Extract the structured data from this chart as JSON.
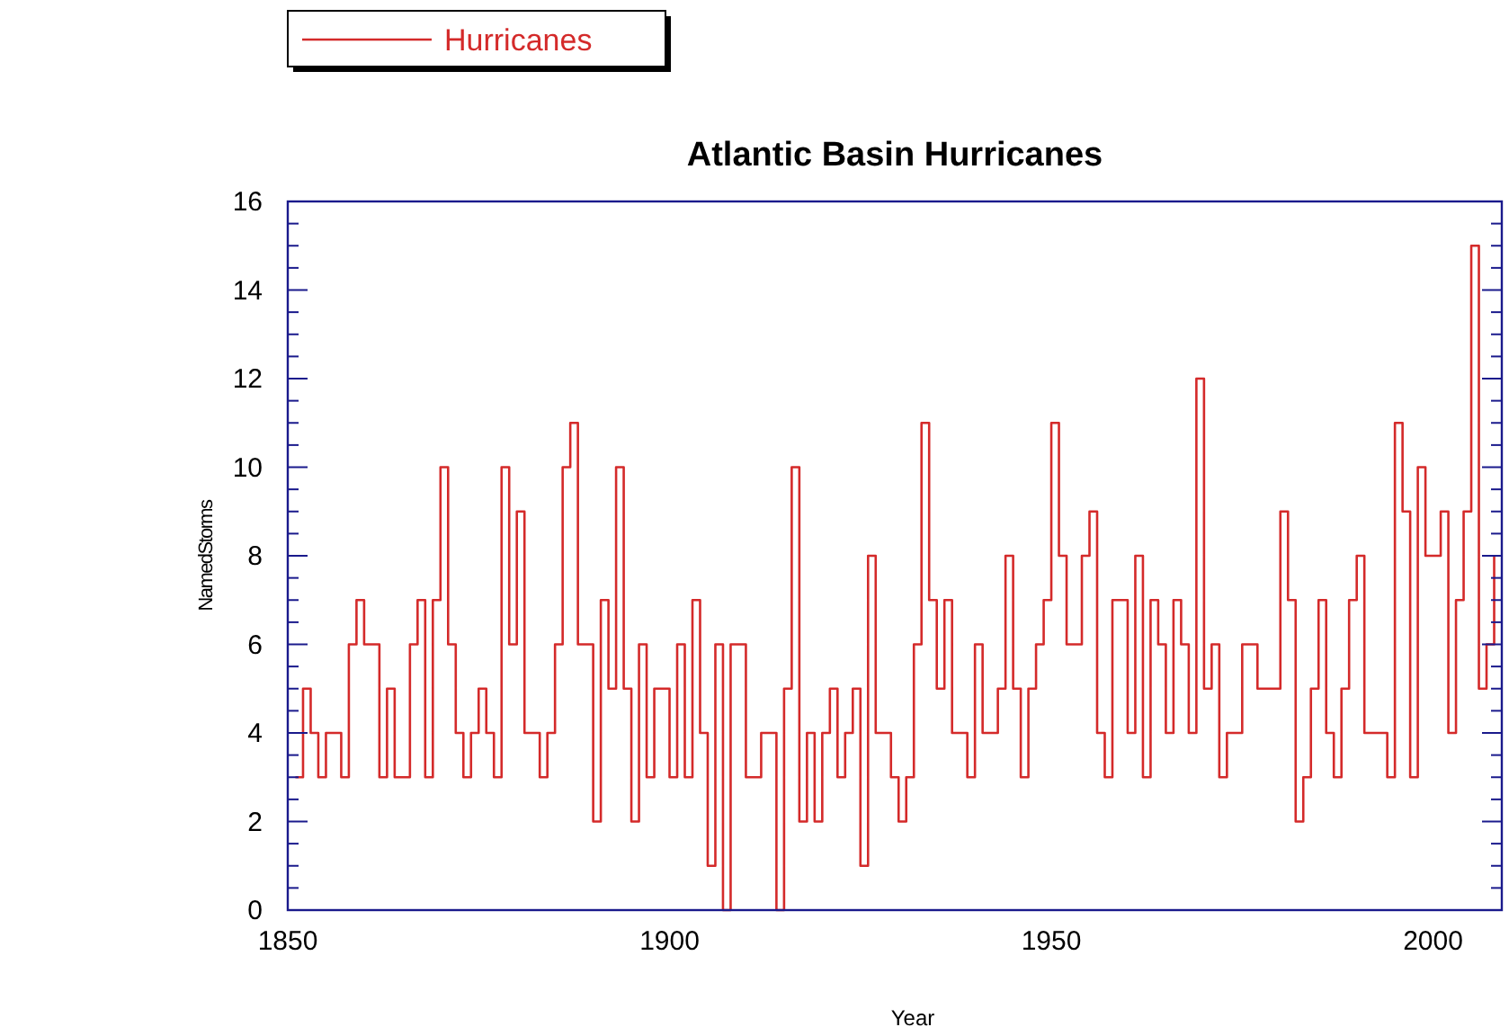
{
  "chart_data": {
    "type": "step",
    "title": "Atlantic Basin Hurricanes",
    "xlabel": "Year",
    "ylabel": "NamedStorms",
    "xlim": [
      1850,
      2009
    ],
    "xticks": [
      1850,
      1900,
      1950,
      2000
    ],
    "ylim": [
      0,
      16
    ],
    "yticks": [
      0,
      {
        "value": 0.5,
        "label": null
      },
      {
        "value": 1,
        "label": null
      },
      {
        "value": 1.5,
        "label": null
      },
      2,
      {
        "value": 2.5,
        "label": null
      },
      {
        "value": 3,
        "label": null
      },
      {
        "value": 3.5,
        "label": null
      },
      4,
      {
        "value": 4.5,
        "label": null
      },
      {
        "value": 5,
        "label": null
      },
      {
        "value": 5.5,
        "label": null
      },
      6,
      {
        "value": 6.5,
        "label": null
      },
      {
        "value": 7,
        "label": null
      },
      {
        "value": 7.5,
        "label": null
      },
      8,
      {
        "value": 8.5,
        "label": null
      },
      {
        "value": 9,
        "label": null
      },
      {
        "value": 9.5,
        "label": null
      },
      10,
      {
        "value": 10.5,
        "label": null
      },
      {
        "value": 11,
        "label": null
      },
      {
        "value": 11.5,
        "label": null
      },
      12,
      {
        "value": 12.5,
        "label": null
      },
      {
        "value": 13,
        "label": null
      },
      {
        "value": 13.5,
        "label": null
      },
      14,
      {
        "value": 14.5,
        "label": null
      },
      {
        "value": 15,
        "label": null
      },
      {
        "value": 15.5,
        "label": null
      },
      16
    ],
    "legend": "top left",
    "grid": false,
    "x": [
      1851,
      1852,
      1853,
      1854,
      1855,
      1856,
      1857,
      1858,
      1859,
      1860,
      1861,
      1862,
      1863,
      1864,
      1865,
      1866,
      1867,
      1868,
      1869,
      1870,
      1871,
      1872,
      1873,
      1874,
      1875,
      1876,
      1877,
      1878,
      1879,
      1880,
      1881,
      1882,
      1883,
      1884,
      1885,
      1886,
      1887,
      1888,
      1889,
      1890,
      1891,
      1892,
      1893,
      1894,
      1895,
      1896,
      1897,
      1898,
      1899,
      1900,
      1901,
      1902,
      1903,
      1904,
      1905,
      1906,
      1907,
      1908,
      1909,
      1910,
      1911,
      1912,
      1913,
      1914,
      1915,
      1916,
      1917,
      1918,
      1919,
      1920,
      1921,
      1922,
      1923,
      1924,
      1925,
      1926,
      1927,
      1928,
      1929,
      1930,
      1931,
      1932,
      1933,
      1934,
      1935,
      1936,
      1937,
      1938,
      1939,
      1940,
      1941,
      1942,
      1943,
      1944,
      1945,
      1946,
      1947,
      1948,
      1949,
      1950,
      1951,
      1952,
      1953,
      1954,
      1955,
      1956,
      1957,
      1958,
      1959,
      1960,
      1961,
      1962,
      1963,
      1964,
      1965,
      1966,
      1967,
      1968,
      1969,
      1970,
      1971,
      1972,
      1973,
      1974,
      1975,
      1976,
      1977,
      1978,
      1979,
      1980,
      1981,
      1982,
      1983,
      1984,
      1985,
      1986,
      1987,
      1988,
      1989,
      1990,
      1991,
      1992,
      1993,
      1994,
      1995,
      1996,
      1997,
      1998,
      1999,
      2000,
      2001,
      2002,
      2003,
      2004,
      2005,
      2006,
      2007,
      2008
    ],
    "series": [
      {
        "name": "Hurricanes",
        "color": "#d42a2a",
        "values": [
          3,
          5,
          4,
          3,
          4,
          4,
          3,
          6,
          7,
          6,
          6,
          3,
          5,
          3,
          3,
          6,
          7,
          3,
          7,
          10,
          6,
          4,
          3,
          4,
          5,
          4,
          3,
          10,
          6,
          9,
          4,
          4,
          3,
          4,
          6,
          10,
          11,
          6,
          6,
          2,
          7,
          5,
          10,
          5,
          2,
          6,
          3,
          5,
          5,
          3,
          6,
          3,
          7,
          4,
          1,
          6,
          0,
          6,
          6,
          3,
          3,
          4,
          4,
          0,
          5,
          10,
          2,
          4,
          2,
          4,
          5,
          3,
          4,
          5,
          1,
          8,
          4,
          4,
          3,
          2,
          3,
          6,
          11,
          7,
          5,
          7,
          4,
          4,
          3,
          6,
          4,
          4,
          5,
          8,
          5,
          3,
          5,
          6,
          7,
          11,
          8,
          6,
          6,
          8,
          9,
          4,
          3,
          7,
          7,
          4,
          8,
          3,
          7,
          6,
          4,
          7,
          6,
          4,
          12,
          5,
          6,
          3,
          4,
          4,
          6,
          6,
          5,
          5,
          5,
          9,
          7,
          2,
          3,
          5,
          7,
          4,
          3,
          5,
          7,
          8,
          4,
          4,
          4,
          3,
          11,
          9,
          3,
          10,
          8,
          8,
          9,
          4,
          7,
          9,
          15,
          5,
          6,
          8
        ]
      }
    ]
  }
}
